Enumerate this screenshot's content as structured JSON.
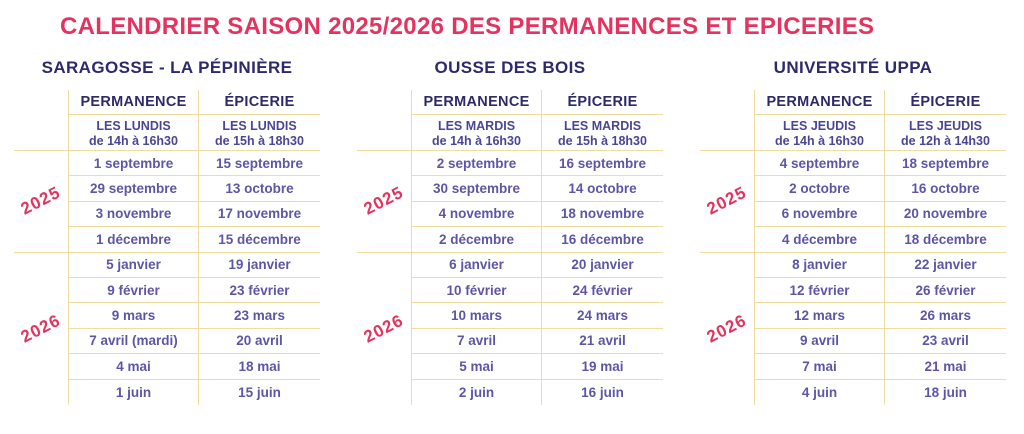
{
  "title": "CALENDRIER SAISON 2025/2026 DES PERMANENCES ET EPICERIES",
  "colors": {
    "accent_pink": "#e5335f",
    "heading_navy": "#2d2a6b",
    "date_purple": "#5d55a6",
    "line_gold": "#f0dd9d"
  },
  "column_headers": {
    "permanence": "PERMANENCE",
    "epicerie": "ÉPICERIE"
  },
  "year_labels": {
    "y2025": "2025",
    "y2026": "2026"
  },
  "sections": [
    {
      "name": "SARAGOSSE - LA PÉPINIÈRE",
      "schedule": {
        "permanence": {
          "line1": "LES LUNDIS",
          "line2": "de 14h à 16h30"
        },
        "epicerie": {
          "line1": "LES LUNDIS",
          "line2": "de 15h à 18h30"
        }
      },
      "rows_2025": [
        {
          "permanence": "1 septembre",
          "epicerie": "15 septembre"
        },
        {
          "permanence": "29 septembre",
          "epicerie": "13 octobre"
        },
        {
          "permanence": "3 novembre",
          "epicerie": "17 novembre"
        },
        {
          "permanence": "1 décembre",
          "epicerie": "15 décembre"
        }
      ],
      "rows_2026": [
        {
          "permanence": "5 janvier",
          "epicerie": "19 janvier"
        },
        {
          "permanence": "9 février",
          "epicerie": "23 février"
        },
        {
          "permanence": "9 mars",
          "epicerie": "23 mars"
        },
        {
          "permanence": "7 avril (mardi)",
          "epicerie": "20 avril"
        },
        {
          "permanence": "4 mai",
          "epicerie": "18 mai"
        },
        {
          "permanence": "1 juin",
          "epicerie": "15 juin"
        }
      ]
    },
    {
      "name": "OUSSE DES BOIS",
      "schedule": {
        "permanence": {
          "line1": "LES MARDIS",
          "line2": "de 14h à 16h30"
        },
        "epicerie": {
          "line1": "LES MARDIS",
          "line2": "de 15h à 18h30"
        }
      },
      "rows_2025": [
        {
          "permanence": "2 septembre",
          "epicerie": "16 septembre"
        },
        {
          "permanence": "30 septembre",
          "epicerie": "14 octobre"
        },
        {
          "permanence": "4 novembre",
          "epicerie": "18 novembre"
        },
        {
          "permanence": "2 décembre",
          "epicerie": "16 décembre"
        }
      ],
      "rows_2026": [
        {
          "permanence": "6 janvier",
          "epicerie": "20 janvier"
        },
        {
          "permanence": "10 février",
          "epicerie": "24 février"
        },
        {
          "permanence": "10 mars",
          "epicerie": "24 mars"
        },
        {
          "permanence": "7 avril",
          "epicerie": "21 avril"
        },
        {
          "permanence": "5 mai",
          "epicerie": "19 mai"
        },
        {
          "permanence": "2 juin",
          "epicerie": "16 juin"
        }
      ]
    },
    {
      "name": "UNIVERSITÉ UPPA",
      "schedule": {
        "permanence": {
          "line1": "LES JEUDIS",
          "line2": "de 14h à 16h30"
        },
        "epicerie": {
          "line1": "LES JEUDIS",
          "line2": "de 12h à 14h30"
        }
      },
      "rows_2025": [
        {
          "permanence": "4 septembre",
          "epicerie": "18 septembre"
        },
        {
          "permanence": "2 octobre",
          "epicerie": "16 octobre"
        },
        {
          "permanence": "6 novembre",
          "epicerie": "20 novembre"
        },
        {
          "permanence": "4 décembre",
          "epicerie": "18 décembre"
        }
      ],
      "rows_2026": [
        {
          "permanence": "8 janvier",
          "epicerie": "22 janvier"
        },
        {
          "permanence": "12 février",
          "epicerie": "26 février"
        },
        {
          "permanence": "12 mars",
          "epicerie": "26 mars"
        },
        {
          "permanence": "9 avril",
          "epicerie": "23 avril"
        },
        {
          "permanence": "7 mai",
          "epicerie": "21 mai"
        },
        {
          "permanence": "4 juin",
          "epicerie": "18 juin"
        }
      ]
    }
  ]
}
